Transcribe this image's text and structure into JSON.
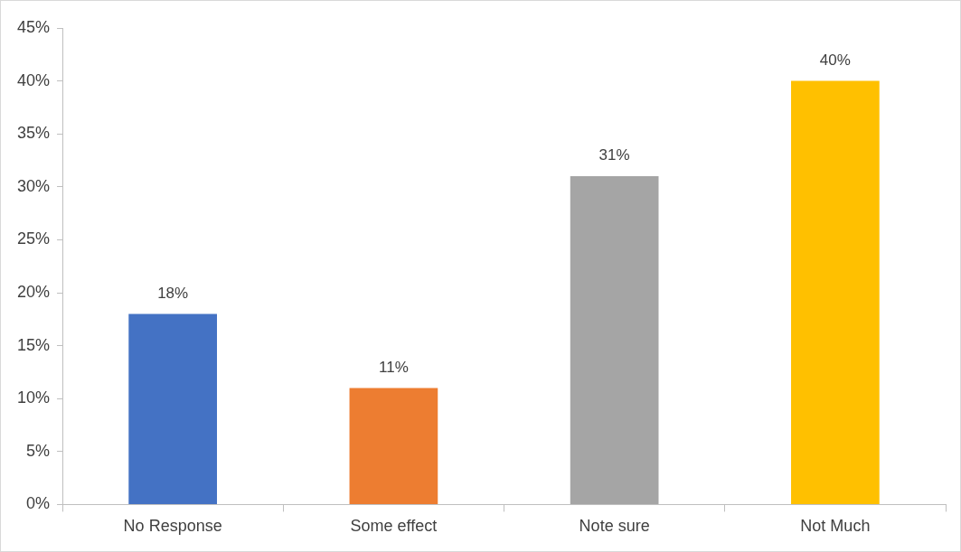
{
  "chart_data": {
    "type": "bar",
    "categories": [
      "No Response",
      "Some effect",
      "Note sure",
      "Not Much"
    ],
    "values": [
      18,
      11,
      31,
      40
    ],
    "colors": [
      "#4472c4",
      "#ed7d31",
      "#a5a5a5",
      "#ffc000"
    ],
    "value_labels": [
      "18%",
      "11%",
      "31%",
      "40%"
    ],
    "ylim": [
      0,
      45
    ],
    "yticks": [
      {
        "value": 0,
        "label": "0%"
      },
      {
        "value": 5,
        "label": "5%"
      },
      {
        "value": 10,
        "label": "10%"
      },
      {
        "value": 15,
        "label": "15%"
      },
      {
        "value": 20,
        "label": "20%"
      },
      {
        "value": 25,
        "label": "25%"
      },
      {
        "value": 30,
        "label": "30%"
      },
      {
        "value": 35,
        "label": "35%"
      },
      {
        "value": 40,
        "label": "40%"
      },
      {
        "value": 45,
        "label": "45%"
      }
    ],
    "grid": false,
    "legend": false
  }
}
